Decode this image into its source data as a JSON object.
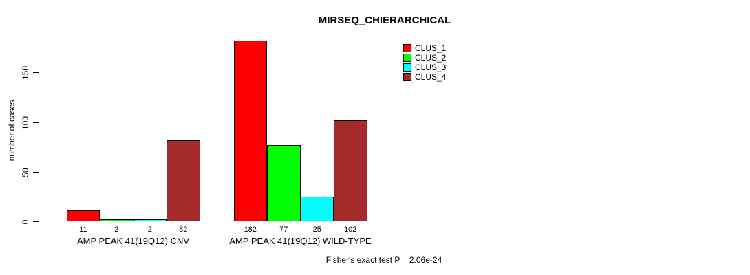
{
  "title": "MIRSEQ_CHIERARCHICAL",
  "ylabel": "number of cases",
  "annotation": "Fisher's exact test P = 2.06e-24",
  "colors": {
    "bar_outline": "#000000",
    "clus_1": "#ff0000",
    "clus_2": "#00ff00",
    "clus_3": "#00ffff",
    "clus_4": "#a52a2a"
  },
  "legend": {
    "items": [
      {
        "label": "CLUS_1",
        "color": "#ff0000"
      },
      {
        "label": "CLUS_2",
        "color": "#00ff00"
      },
      {
        "label": "CLUS_3",
        "color": "#00ffff"
      },
      {
        "label": "CLUS_4",
        "color": "#a52a2a"
      }
    ]
  },
  "chart_data": {
    "type": "bar",
    "title": "MIRSEQ_CHIERARCHICAL",
    "categories": [
      "AMP PEAK 41(19Q12) CNV",
      "AMP PEAK 41(19Q12) WILD-TYPE"
    ],
    "series": [
      {
        "name": "CLUS_1",
        "color": "#ff0000",
        "values": [
          11,
          182
        ]
      },
      {
        "name": "CLUS_2",
        "color": "#00ff00",
        "values": [
          2,
          77
        ]
      },
      {
        "name": "CLUS_3",
        "color": "#00ffff",
        "values": [
          2,
          25
        ]
      },
      {
        "name": "CLUS_4",
        "color": "#a52a2a",
        "values": [
          82,
          102
        ]
      }
    ],
    "bar_value_labels": [
      [
        11,
        2,
        2,
        82
      ],
      [
        182,
        77,
        25,
        102
      ]
    ],
    "xlabel": "",
    "ylabel": "number of cases",
    "yticks": [
      0,
      50,
      100,
      150
    ],
    "ylim": [
      0,
      182
    ],
    "grid": false,
    "legend_entries": [
      "CLUS_1",
      "CLUS_2",
      "CLUS_3",
      "CLUS_4"
    ],
    "legend_position": "top-right",
    "annotation": "Fisher's exact test P = 2.06e-24"
  }
}
